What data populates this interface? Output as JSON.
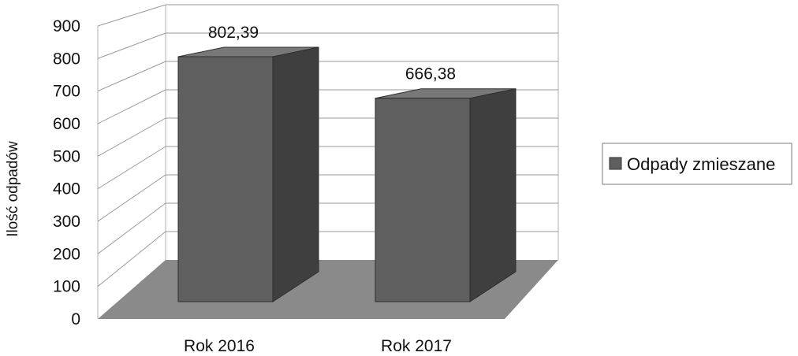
{
  "chart_data": {
    "type": "bar",
    "categories": [
      "Rok 2016",
      "Rok 2017"
    ],
    "series": [
      {
        "name": "Odpady zmieszane",
        "values": [
          802.39,
          666.38
        ]
      }
    ],
    "data_labels": [
      "802,39",
      "666,38"
    ],
    "title": "",
    "xlabel": "",
    "ylabel": "Ilość odpadów",
    "ylim": [
      0,
      900
    ],
    "yticks": [
      0,
      100,
      200,
      300,
      400,
      500,
      600,
      700,
      800,
      900
    ],
    "grid": true,
    "three_d": true,
    "legend_position": "right",
    "colors": {
      "bar_front": "#5f5f5f",
      "bar_top": "#787878",
      "bar_side": "#3f3f3f",
      "floor": "#8a8a8a",
      "grid": "#9a9a9a"
    }
  }
}
